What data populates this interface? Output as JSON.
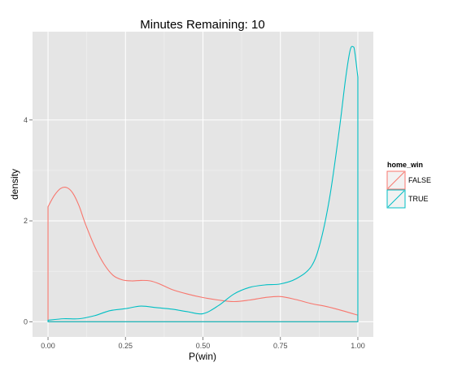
{
  "chart_data": {
    "type": "area",
    "title": "Minutes Remaining: 10",
    "xlabel": "P(win)",
    "ylabel": "density",
    "xlim": [
      -0.05,
      1.05
    ],
    "ylim": [
      -0.3,
      5.75
    ],
    "x_ticks": [
      0.0,
      0.25,
      0.5,
      0.75,
      1.0
    ],
    "x_tick_labels": [
      "0.00",
      "0.25",
      "0.50",
      "0.75",
      "1.00"
    ],
    "y_ticks": [
      0,
      2,
      4
    ],
    "y_tick_labels": [
      "0",
      "2",
      "4"
    ],
    "grid": true,
    "legend": {
      "title": "home_win",
      "position": "right"
    },
    "series": [
      {
        "name": "FALSE",
        "color": "#F8766D",
        "x": [
          0.0,
          0.02,
          0.04,
          0.06,
          0.08,
          0.1,
          0.12,
          0.15,
          0.18,
          0.21,
          0.24,
          0.27,
          0.3,
          0.33,
          0.36,
          0.4,
          0.45,
          0.5,
          0.55,
          0.6,
          0.65,
          0.7,
          0.75,
          0.8,
          0.85,
          0.9,
          0.95,
          1.0
        ],
        "y": [
          2.28,
          2.5,
          2.64,
          2.66,
          2.55,
          2.3,
          1.95,
          1.5,
          1.15,
          0.92,
          0.83,
          0.81,
          0.82,
          0.81,
          0.75,
          0.64,
          0.55,
          0.48,
          0.43,
          0.4,
          0.43,
          0.48,
          0.5,
          0.44,
          0.36,
          0.3,
          0.22,
          0.13
        ]
      },
      {
        "name": "TRUE",
        "color": "#00BFC4",
        "x": [
          0.0,
          0.05,
          0.1,
          0.15,
          0.2,
          0.25,
          0.3,
          0.35,
          0.4,
          0.45,
          0.5,
          0.55,
          0.6,
          0.65,
          0.7,
          0.75,
          0.8,
          0.85,
          0.88,
          0.91,
          0.94,
          0.96,
          0.975,
          0.985,
          0.99,
          1.0
        ],
        "y": [
          0.03,
          0.06,
          0.06,
          0.12,
          0.22,
          0.26,
          0.31,
          0.28,
          0.25,
          0.2,
          0.16,
          0.32,
          0.55,
          0.68,
          0.73,
          0.75,
          0.85,
          1.1,
          1.6,
          2.5,
          3.8,
          4.8,
          5.38,
          5.45,
          5.35,
          4.85
        ]
      }
    ]
  }
}
